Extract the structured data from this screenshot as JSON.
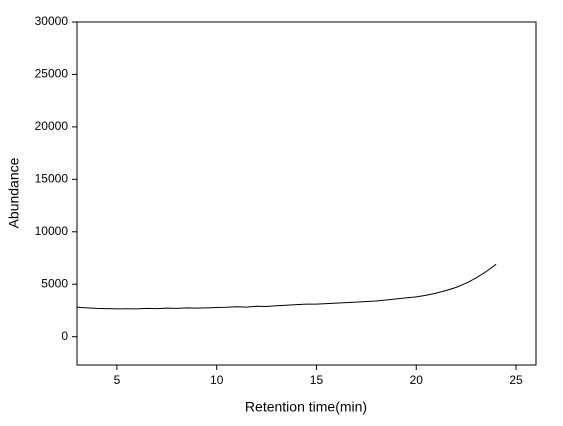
{
  "chart_data": {
    "type": "line",
    "x_label": "Retention time(min)",
    "y_label": "Abundance",
    "x": [
      3,
      3.5,
      4,
      4.5,
      5,
      5.5,
      6,
      6.5,
      7,
      7.5,
      8,
      8.5,
      9,
      9.5,
      10,
      10.5,
      11,
      11.5,
      12,
      12.5,
      13,
      13.5,
      14,
      14.5,
      15,
      15.5,
      16,
      16.5,
      17,
      17.5,
      18,
      18.5,
      19,
      19.5,
      20,
      20.5,
      21,
      21.5,
      22,
      22.5,
      23,
      23.5,
      24
    ],
    "series": [
      {
        "color": "#000000",
        "values": [
          2800,
          2750,
          2700,
          2680,
          2650,
          2660,
          2650,
          2700,
          2680,
          2720,
          2700,
          2750,
          2720,
          2750,
          2780,
          2800,
          2850,
          2820,
          2900,
          2880,
          2950,
          3000,
          3050,
          3100,
          3100,
          3150,
          3200,
          3250,
          3300,
          3350,
          3400,
          3500,
          3600,
          3700,
          3800,
          3950,
          4150,
          4400,
          4700,
          5100,
          5600,
          6200,
          6900
        ]
      }
    ],
    "xlim": [
      3,
      26
    ],
    "xticks": [
      5,
      10,
      15,
      20,
      25
    ],
    "ylim": [
      -2700,
      30000
    ],
    "yticks": [
      0,
      5000,
      10000,
      15000,
      20000,
      25000,
      30000
    ]
  }
}
